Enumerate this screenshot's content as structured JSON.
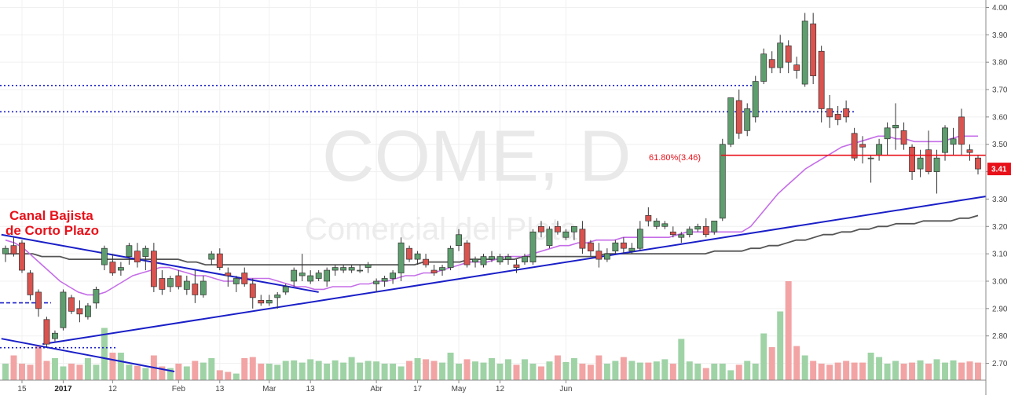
{
  "chart_data": {
    "type": "candlestick",
    "watermark": {
      "symbol": "COME, D",
      "name": "Comercial del Plata"
    },
    "y_axis": {
      "ticks": [
        "4.00",
        "3.90",
        "3.80",
        "3.70",
        "3.60",
        "3.50",
        "3.40",
        "3.30",
        "3.20",
        "3.10",
        "3.00",
        "2.90",
        "2.80",
        "2.70"
      ],
      "ylim": [
        2.67,
        4.01
      ]
    },
    "x_axis": {
      "ticks": [
        {
          "i": 2,
          "label": "15"
        },
        {
          "i": 7,
          "label": "2017",
          "bold": true
        },
        {
          "i": 13,
          "label": "12"
        },
        {
          "i": 21,
          "label": "Feb"
        },
        {
          "i": 26,
          "label": "13"
        },
        {
          "i": 32,
          "label": "Mar"
        },
        {
          "i": 37,
          "label": "13"
        },
        {
          "i": 45,
          "label": "Abr"
        },
        {
          "i": 50,
          "label": "17"
        },
        {
          "i": 55,
          "label": "May"
        },
        {
          "i": 60,
          "label": "12"
        },
        {
          "i": 68,
          "label": "Jun"
        }
      ]
    },
    "candles": [
      [
        3.1,
        3.13,
        3.07,
        3.12
      ],
      [
        3.13,
        3.16,
        3.09,
        3.1
      ],
      [
        3.14,
        3.15,
        3.03,
        3.04
      ],
      [
        3.03,
        3.04,
        2.93,
        2.95
      ],
      [
        2.96,
        2.97,
        2.87,
        2.9
      ],
      [
        2.86,
        2.87,
        2.76,
        2.77
      ],
      [
        2.79,
        2.82,
        2.78,
        2.81
      ],
      [
        2.83,
        2.97,
        2.82,
        2.96
      ],
      [
        2.94,
        2.95,
        2.88,
        2.89
      ],
      [
        2.9,
        2.93,
        2.85,
        2.88
      ],
      [
        2.87,
        2.92,
        2.86,
        2.91
      ],
      [
        2.92,
        2.98,
        2.9,
        2.97
      ],
      [
        3.06,
        3.13,
        3.04,
        3.12
      ],
      [
        3.07,
        3.1,
        3.02,
        3.03
      ],
      [
        3.04,
        3.07,
        3.02,
        3.05
      ],
      [
        3.09,
        3.14,
        3.06,
        3.13
      ],
      [
        3.11,
        3.14,
        3.05,
        3.07
      ],
      [
        3.09,
        3.13,
        3.04,
        3.12
      ],
      [
        3.11,
        3.14,
        2.96,
        2.98
      ],
      [
        3.01,
        3.04,
        2.95,
        2.97
      ],
      [
        2.98,
        3.02,
        2.96,
        3.01
      ],
      [
        3.02,
        3.04,
        2.97,
        2.98
      ],
      [
        2.97,
        3.02,
        2.95,
        3.0
      ],
      [
        2.99,
        3.04,
        2.92,
        2.95
      ],
      [
        2.95,
        3.02,
        2.94,
        3.0
      ],
      [
        3.08,
        3.11,
        3.06,
        3.1
      ],
      [
        3.1,
        3.12,
        3.04,
        3.05
      ],
      [
        3.03,
        3.05,
        2.98,
        3.02
      ],
      [
        2.99,
        3.02,
        2.96,
        3.01
      ],
      [
        3.03,
        3.05,
        2.98,
        2.99
      ],
      [
        2.99,
        3.01,
        2.9,
        2.94
      ],
      [
        2.93,
        2.95,
        2.91,
        2.92
      ],
      [
        2.92,
        2.95,
        2.91,
        2.93
      ],
      [
        2.94,
        2.96,
        2.9,
        2.95
      ],
      [
        2.96,
        2.99,
        2.95,
        2.98
      ],
      [
        3.0,
        3.05,
        2.98,
        3.04
      ],
      [
        3.02,
        3.1,
        3.0,
        3.03
      ],
      [
        3.0,
        3.04,
        2.99,
        3.02
      ],
      [
        3.01,
        3.04,
        3.0,
        3.03
      ],
      [
        3.0,
        3.05,
        2.98,
        3.04
      ]
    ],
    "candles_more": [
      [
        3.04,
        3.06,
        3.02,
        3.05
      ],
      [
        3.04,
        3.06,
        3.03,
        3.05
      ],
      [
        3.04,
        3.06,
        3.03,
        3.05
      ],
      [
        3.04,
        3.06,
        3.03,
        3.04
      ],
      [
        3.05,
        3.07,
        3.03,
        3.06
      ],
      [
        2.99,
        3.01,
        2.96,
        3.0
      ],
      [
        3.0,
        3.02,
        2.98,
        3.01
      ],
      [
        3.01,
        3.04,
        2.99,
        3.03
      ],
      [
        3.03,
        3.16,
        3.0,
        3.14
      ],
      [
        3.12,
        3.13,
        3.07,
        3.08
      ],
      [
        3.08,
        3.11,
        3.06,
        3.1
      ],
      [
        3.08,
        3.1,
        3.05,
        3.06
      ],
      [
        3.04,
        3.06,
        3.02,
        3.03
      ],
      [
        3.04,
        3.06,
        3.02,
        3.05
      ],
      [
        3.05,
        3.13,
        3.04,
        3.12
      ],
      [
        3.13,
        3.19,
        3.11,
        3.17
      ],
      [
        3.14,
        3.15,
        3.05,
        3.06
      ],
      [
        3.07,
        3.09,
        3.05,
        3.08
      ],
      [
        3.06,
        3.1,
        3.05,
        3.09
      ],
      [
        3.08,
        3.11,
        3.07,
        3.09
      ],
      [
        3.07,
        3.1,
        3.06,
        3.09
      ],
      [
        3.08,
        3.1,
        3.06,
        3.09
      ],
      [
        3.06,
        3.08,
        3.03,
        3.05
      ],
      [
        3.07,
        3.1,
        3.06,
        3.09
      ],
      [
        3.07,
        3.19,
        3.06,
        3.18
      ]
    ],
    "candles_late": [
      [
        3.2,
        3.22,
        3.16,
        3.18
      ],
      [
        3.13,
        3.2,
        3.12,
        3.19
      ],
      [
        3.2,
        3.22,
        3.17,
        3.18
      ],
      [
        3.16,
        3.19,
        3.15,
        3.18
      ],
      [
        3.18,
        3.2,
        3.15,
        3.2
      ],
      [
        3.19,
        3.22,
        3.1,
        3.12
      ],
      [
        3.14,
        3.15,
        3.09,
        3.11
      ],
      [
        3.11,
        3.14,
        3.05,
        3.08
      ],
      [
        3.08,
        3.12,
        3.07,
        3.1
      ],
      [
        3.11,
        3.15,
        3.1,
        3.14
      ],
      [
        3.14,
        3.16,
        3.1,
        3.12
      ],
      [
        3.11,
        3.14,
        3.1,
        3.12
      ],
      [
        3.12,
        3.22,
        3.11,
        3.19
      ],
      [
        3.24,
        3.27,
        3.2,
        3.22
      ],
      [
        3.2,
        3.23,
        3.19,
        3.22
      ],
      [
        3.2,
        3.22,
        3.19,
        3.21
      ],
      [
        3.18,
        3.2,
        3.16,
        3.17
      ],
      [
        3.16,
        3.18,
        3.14,
        3.17
      ],
      [
        3.17,
        3.2,
        3.16,
        3.19
      ],
      [
        3.19,
        3.21,
        3.18,
        3.2
      ],
      [
        3.2,
        3.23,
        3.16,
        3.17
      ],
      [
        3.18,
        3.22,
        3.17,
        3.22
      ],
      [
        3.23,
        3.52,
        3.22,
        3.5
      ],
      [
        3.5,
        3.67,
        3.49,
        3.67
      ],
      [
        3.66,
        3.7,
        3.52,
        3.54
      ]
    ],
    "candles_end": [
      [
        3.55,
        3.65,
        3.53,
        3.63
      ],
      [
        3.6,
        3.75,
        3.58,
        3.73
      ],
      [
        3.73,
        3.85,
        3.72,
        3.83
      ],
      [
        3.81,
        3.84,
        3.76,
        3.78
      ],
      [
        3.78,
        3.9,
        3.76,
        3.87
      ],
      [
        3.86,
        3.88,
        3.76,
        3.8
      ],
      [
        3.79,
        3.82,
        3.74,
        3.77
      ],
      [
        3.72,
        3.98,
        3.71,
        3.95
      ],
      [
        3.94,
        3.98,
        3.72,
        3.75
      ],
      [
        3.84,
        3.86,
        3.58,
        3.63
      ],
      [
        3.63,
        3.68,
        3.56,
        3.6
      ],
      [
        3.61,
        3.64,
        3.57,
        3.59
      ],
      [
        3.63,
        3.66,
        3.58,
        3.6
      ],
      [
        3.54,
        3.56,
        3.44,
        3.45
      ],
      [
        3.5,
        3.53,
        3.43,
        3.49
      ],
      [
        3.45,
        3.46,
        3.36,
        3.45
      ],
      [
        3.46,
        3.52,
        3.44,
        3.5
      ],
      [
        3.52,
        3.58,
        3.46,
        3.56
      ],
      [
        3.56,
        3.65,
        3.48,
        3.57
      ],
      [
        3.55,
        3.58,
        3.48,
        3.5
      ],
      [
        3.49,
        3.5,
        3.37,
        3.4
      ],
      [
        3.41,
        3.48,
        3.38,
        3.45
      ],
      [
        3.48,
        3.55,
        3.39,
        3.4
      ],
      [
        3.4,
        3.48,
        3.32,
        3.45
      ],
      [
        3.47,
        3.57,
        3.44,
        3.56
      ]
    ],
    "candles_tail": [
      [
        3.5,
        3.56,
        3.46,
        3.52
      ],
      [
        3.6,
        3.63,
        3.46,
        3.5
      ],
      [
        3.48,
        3.5,
        3.44,
        3.47
      ],
      [
        3.45,
        3.46,
        3.39,
        3.41
      ]
    ],
    "volume": [
      0.3,
      0.45,
      0.3,
      0.28,
      0.62,
      0.35,
      0.4,
      0.25,
      0.3,
      0.28,
      0.4,
      0.28,
      0.95,
      0.5,
      0.5,
      0.28,
      0.26,
      0.22,
      0.45,
      0.25,
      0.22,
      0.3,
      0.25,
      0.35,
      0.32,
      0.4,
      0.18,
      0.15,
      0.12,
      0.4,
      0.42,
      0.3,
      0.3,
      0.28,
      0.35,
      0.36,
      0.32,
      0.38,
      0.35,
      0.3,
      0.36,
      0.32,
      0.42,
      0.32,
      0.35,
      0.34,
      0.3,
      0.3,
      0.25,
      0.35,
      0.4,
      0.38,
      0.35,
      0.32,
      0.5,
      0.3,
      0.38,
      0.34,
      0.32,
      0.4,
      0.3,
      0.38,
      0.28,
      0.38,
      0.3,
      0.25,
      0.34,
      0.45,
      0.33,
      0.4,
      0.3,
      0.28,
      0.45,
      0.3,
      0.35,
      0.42,
      0.35,
      0.32,
      0.32,
      0.34,
      0.38,
      0.3,
      0.75,
      0.34,
      0.3,
      0.22,
      0.3,
      0.3,
      0.18,
      0.28,
      0.35,
      0.3,
      0.85,
      0.6,
      1.25,
      1.8,
      0.62,
      0.45,
      0.35,
      0.3,
      0.28,
      0.32,
      0.35,
      0.32,
      0.32,
      0.5,
      0.42,
      0.3,
      0.35,
      0.3,
      0.32,
      0.36,
      0.3,
      0.38,
      0.32,
      0.36,
      0.32,
      0.34,
      0.32
    ],
    "ma_short": [
      3.15,
      3.14,
      3.12,
      3.09,
      3.06,
      3.03,
      3.0,
      2.98,
      2.96,
      2.95,
      2.95,
      2.96,
      2.98,
      3.0,
      3.02,
      3.03,
      3.04,
      3.05,
      3.05,
      3.04,
      3.03,
      3.02,
      3.02,
      3.01,
      3.0,
      3.0,
      3.01,
      3.01,
      3.01,
      3.01,
      3.0,
      2.99,
      2.98,
      2.98,
      2.97,
      2.97,
      2.98,
      2.98,
      2.98,
      2.99,
      2.99,
      3.0,
      3.0,
      3.01,
      3.02,
      3.02,
      3.03,
      3.03,
      3.04,
      3.05,
      3.06,
      3.07,
      3.07,
      3.07,
      3.08,
      3.09,
      3.09,
      3.09,
      3.1,
      3.11,
      3.12,
      3.13,
      3.13,
      3.14,
      3.14,
      3.15,
      3.15,
      3.15,
      3.16,
      3.16,
      3.16,
      3.16,
      3.16,
      3.16,
      3.17,
      3.18,
      3.18,
      3.18,
      3.18,
      3.18,
      3.18,
      3.18,
      3.2,
      3.24,
      3.28,
      3.32,
      3.35,
      3.38,
      3.41,
      3.43,
      3.45,
      3.47,
      3.49,
      3.5,
      3.51,
      3.52,
      3.53,
      3.53,
      3.52,
      3.52,
      3.51,
      3.51,
      3.51,
      3.51,
      3.52,
      3.53,
      3.53,
      3.53
    ],
    "ma_long": [
      3.1,
      3.1,
      3.1,
      3.1,
      3.09,
      3.09,
      3.09,
      3.08,
      3.08,
      3.08,
      3.08,
      3.08,
      3.08,
      3.08,
      3.08,
      3.08,
      3.08,
      3.08,
      3.08,
      3.08,
      3.07,
      3.07,
      3.06,
      3.06,
      3.06,
      3.06,
      3.06,
      3.06,
      3.06,
      3.06,
      3.06,
      3.06,
      3.06,
      3.06,
      3.06,
      3.06,
      3.06,
      3.06,
      3.06,
      3.06,
      3.06,
      3.06,
      3.06,
      3.06,
      3.06,
      3.06,
      3.07,
      3.07,
      3.07,
      3.07,
      3.07,
      3.08,
      3.08,
      3.08,
      3.08,
      3.08,
      3.08,
      3.09,
      3.09,
      3.09,
      3.09,
      3.09,
      3.09,
      3.09,
      3.09,
      3.09,
      3.1,
      3.1,
      3.1,
      3.1,
      3.1,
      3.1,
      3.1,
      3.1,
      3.1,
      3.1,
      3.1,
      3.1,
      3.11,
      3.11,
      3.11,
      3.11,
      3.12,
      3.12,
      3.13,
      3.13,
      3.14,
      3.15,
      3.15,
      3.16,
      3.17,
      3.17,
      3.18,
      3.18,
      3.19,
      3.19,
      3.2,
      3.2,
      3.21,
      3.21,
      3.21,
      3.22,
      3.22,
      3.22,
      3.22,
      3.23,
      3.23,
      3.24
    ],
    "dotted_levels": [
      3.715,
      3.619,
      2.921,
      2.757
    ],
    "fib_level": {
      "value": 3.46,
      "label": "61.80%(3.46)"
    },
    "last_price": {
      "value": 3.41,
      "label": "3.41"
    },
    "annotation": {
      "line1": "Canal Bajista",
      "line2": "de Corto Plazo"
    },
    "colors": {
      "up": "#5e9e6e",
      "down": "#d9534f",
      "vol_up": "#9fd3a6",
      "vol_down": "#f2a4a4",
      "ma_short": "#c56ee8",
      "ma_long": "#555555",
      "trend": "#1a1fc7",
      "fib": "#e8111a",
      "dotted": "#1a1fc7"
    }
  }
}
